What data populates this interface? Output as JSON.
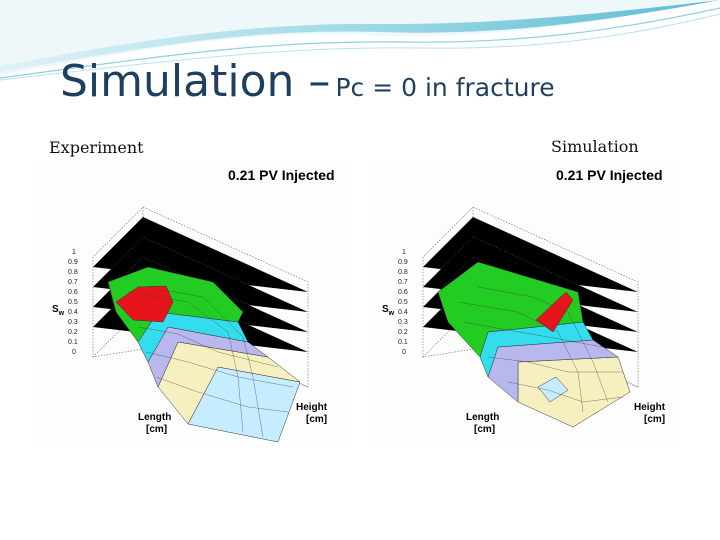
{
  "slide": {
    "title_main": "Simulation –",
    "title_sub": "Pc = 0 in fracture"
  },
  "left": {
    "label": "Experiment",
    "plot_title": "0.21 PV Injected",
    "y_label": "S",
    "y_label_sub": "w",
    "x_label_1": "Length",
    "x_label_2": "[cm]",
    "z_label_1": "Height",
    "z_label_2": "[cm]",
    "y_ticks": [
      "1",
      "0.9",
      "0.8",
      "0.7",
      "0.6",
      "0.5",
      "0.4",
      "0.3",
      "0.2",
      "0.1",
      "0"
    ]
  },
  "right": {
    "label": "Simulation",
    "plot_title": "0.21 PV Injected",
    "y_label": "S",
    "y_label_sub": "w",
    "x_label_1": "Length",
    "x_label_2": "[cm]",
    "z_label_1": "Height",
    "z_label_2": "[cm]",
    "y_ticks": [
      "1",
      "0.9",
      "0.8",
      "0.7",
      "0.6",
      "0.5",
      "0.4",
      "0.3",
      "0.2",
      "0.1",
      "0"
    ]
  },
  "colors": {
    "title": "#1f3f5f",
    "red": "#e8141c",
    "green": "#22cc22",
    "cyan": "#33ddee",
    "lavender": "#b8b8ee",
    "cream": "#f6f0c0",
    "lightblue": "#c6ecff"
  }
}
